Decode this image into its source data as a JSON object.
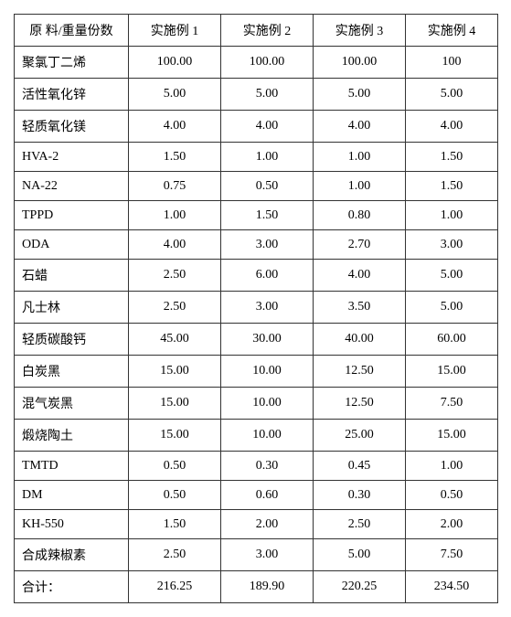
{
  "table": {
    "columns": [
      "原 料/重量份数",
      "实施例 1",
      "实施例 2",
      "实施例 3",
      "实施例 4"
    ],
    "rows": [
      [
        "聚氯丁二烯",
        "100.00",
        "100.00",
        "100.00",
        "100"
      ],
      [
        "活性氧化锌",
        "5.00",
        "5.00",
        "5.00",
        "5.00"
      ],
      [
        "轻质氧化镁",
        "4.00",
        "4.00",
        "4.00",
        "4.00"
      ],
      [
        "HVA-2",
        "1.50",
        "1.00",
        "1.00",
        "1.50"
      ],
      [
        "NA-22",
        "0.75",
        "0.50",
        "1.00",
        "1.50"
      ],
      [
        "TPPD",
        "1.00",
        "1.50",
        "0.80",
        "1.00"
      ],
      [
        "ODA",
        "4.00",
        "3.00",
        "2.70",
        "3.00"
      ],
      [
        "石蜡",
        "2.50",
        "6.00",
        "4.00",
        "5.00"
      ],
      [
        "凡士林",
        "2.50",
        "3.00",
        "3.50",
        "5.00"
      ],
      [
        "轻质碳酸钙",
        "45.00",
        "30.00",
        "40.00",
        "60.00"
      ],
      [
        "白炭黑",
        "15.00",
        "10.00",
        "12.50",
        "15.00"
      ],
      [
        "混气炭黑",
        "15.00",
        "10.00",
        "12.50",
        "7.50"
      ],
      [
        "煅烧陶土",
        "15.00",
        "10.00",
        "25.00",
        "15.00"
      ],
      [
        "TMTD",
        "0.50",
        "0.30",
        "0.45",
        "1.00"
      ],
      [
        "DM",
        "0.50",
        "0.60",
        "0.30",
        "0.50"
      ],
      [
        "KH-550",
        "1.50",
        "2.00",
        "2.50",
        "2.00"
      ],
      [
        "合成辣椒素",
        "2.50",
        "3.00",
        "5.00",
        "7.50"
      ],
      [
        "合计：",
        "216.25",
        "189.90",
        "220.25",
        "234.50"
      ]
    ]
  }
}
